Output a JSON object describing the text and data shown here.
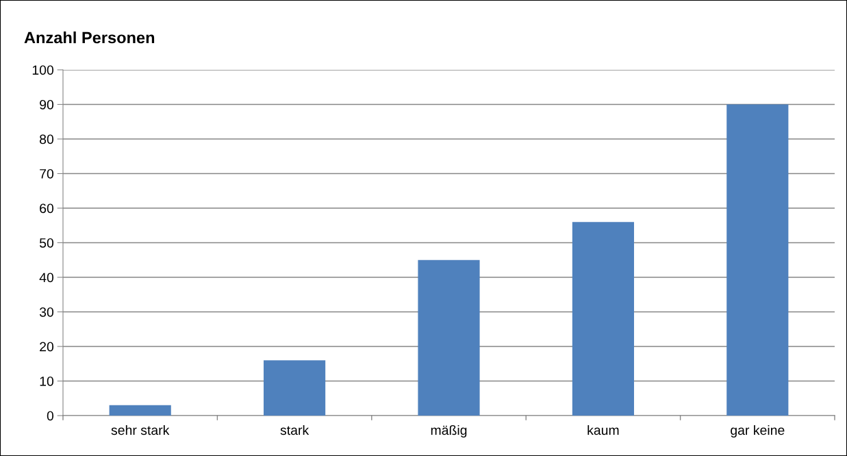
{
  "chart_data": {
    "type": "bar",
    "ylabel": "Anzahl Personen",
    "categories": [
      "sehr stark",
      "stark",
      "mäßig",
      "kaum",
      "gar keine"
    ],
    "values": [
      3,
      16,
      45,
      56,
      90
    ],
    "color": "#4f81bd",
    "ylim": [
      0,
      100
    ],
    "yticks": [
      0,
      10,
      20,
      30,
      40,
      50,
      60,
      70,
      80,
      90,
      100
    ],
    "grid": "y",
    "legend": false
  }
}
